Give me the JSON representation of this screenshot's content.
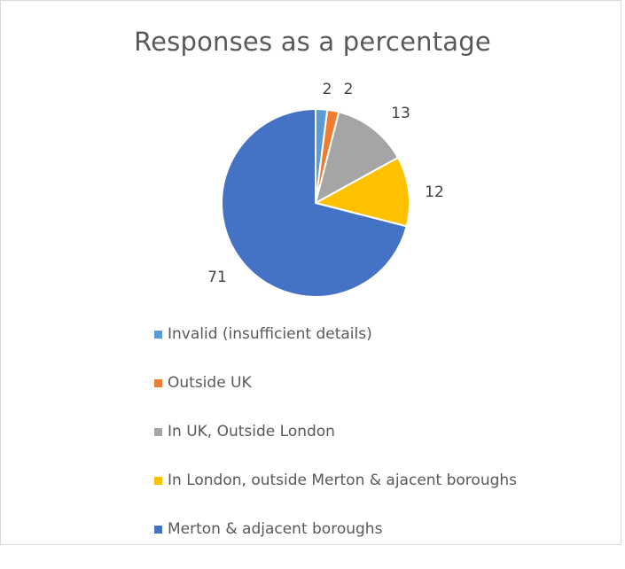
{
  "chart_data": {
    "type": "pie",
    "title": "Responses as a percentage",
    "categories": [
      "Invalid (insufficient details)",
      "Outside UK",
      "In UK, Outside London",
      "In London, outside Merton & ajacent boroughs",
      "Merton & adjacent boroughs"
    ],
    "values": [
      2,
      2,
      13,
      12,
      71
    ],
    "data_labels": [
      "2",
      "2",
      "13",
      "12",
      "71"
    ],
    "colors": [
      "#5b9bd5",
      "#ed7d31",
      "#a5a5a5",
      "#ffc000",
      "#4472c4"
    ],
    "legend_position": "bottom",
    "start_angle_deg": 0,
    "direction": "clockwise"
  }
}
